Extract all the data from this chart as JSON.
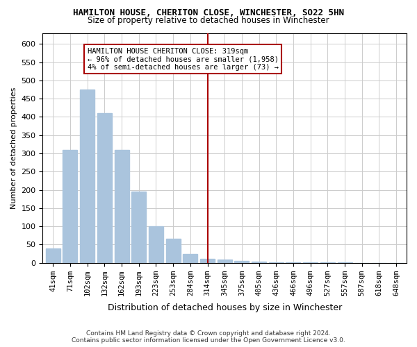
{
  "title": "HAMILTON HOUSE, CHERITON CLOSE, WINCHESTER, SO22 5HN",
  "subtitle": "Size of property relative to detached houses in Winchester",
  "xlabel": "Distribution of detached houses by size in Winchester",
  "ylabel": "Number of detached properties",
  "footer_line1": "Contains HM Land Registry data © Crown copyright and database right 2024.",
  "footer_line2": "Contains public sector information licensed under the Open Government Licence v3.0.",
  "annotation_line1": "HAMILTON HOUSE CHERITON CLOSE: 319sqm",
  "annotation_line2": "← 96% of detached houses are smaller (1,958)",
  "annotation_line3": "4% of semi-detached houses are larger (73) →",
  "bar_color": "#aac4dd",
  "categories": [
    "41sqm",
    "71sqm",
    "102sqm",
    "132sqm",
    "162sqm",
    "193sqm",
    "223sqm",
    "253sqm",
    "284sqm",
    "314sqm",
    "345sqm",
    "375sqm",
    "405sqm",
    "436sqm",
    "466sqm",
    "496sqm",
    "527sqm",
    "557sqm",
    "587sqm",
    "618sqm",
    "648sqm"
  ],
  "values": [
    40,
    310,
    475,
    410,
    310,
    195,
    100,
    65,
    25,
    10,
    8,
    5,
    3,
    2,
    2,
    1,
    1,
    1,
    0,
    0,
    0
  ],
  "vline_index": 9,
  "vline_color": "#aa0000",
  "ylim": [
    0,
    630
  ],
  "yticks": [
    0,
    50,
    100,
    150,
    200,
    250,
    300,
    350,
    400,
    450,
    500,
    550,
    600
  ],
  "bg_color": "#ffffff",
  "grid_color": "#cccccc"
}
